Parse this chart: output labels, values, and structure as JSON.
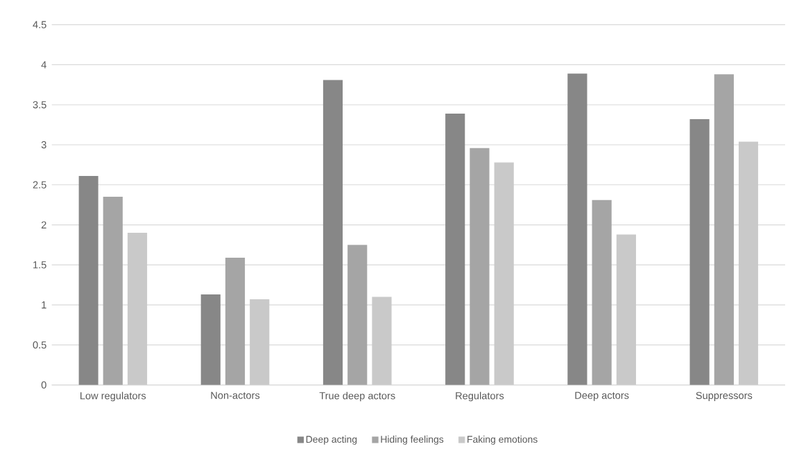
{
  "chart_data": {
    "type": "bar",
    "categories": [
      "Low regulators",
      "Non-actors",
      "True deep actors",
      "Regulators",
      "Deep actors",
      "Suppressors"
    ],
    "series": [
      {
        "name": "Deep acting",
        "color": "#878787",
        "values": [
          2.61,
          1.13,
          3.81,
          3.39,
          3.89,
          3.32
        ]
      },
      {
        "name": "Hiding feelings",
        "color": "#a5a5a5",
        "values": [
          2.35,
          1.59,
          1.75,
          2.96,
          2.31,
          3.88
        ]
      },
      {
        "name": "Faking emotions",
        "color": "#c9c9c9",
        "values": [
          1.9,
          1.07,
          1.1,
          2.78,
          1.88,
          3.04
        ]
      }
    ],
    "ylim": [
      0,
      4.5
    ],
    "yticks": [
      0,
      0.5,
      1,
      1.5,
      2,
      2.5,
      3,
      3.5,
      4,
      4.5
    ],
    "grid": "y",
    "legend": "bottom"
  }
}
